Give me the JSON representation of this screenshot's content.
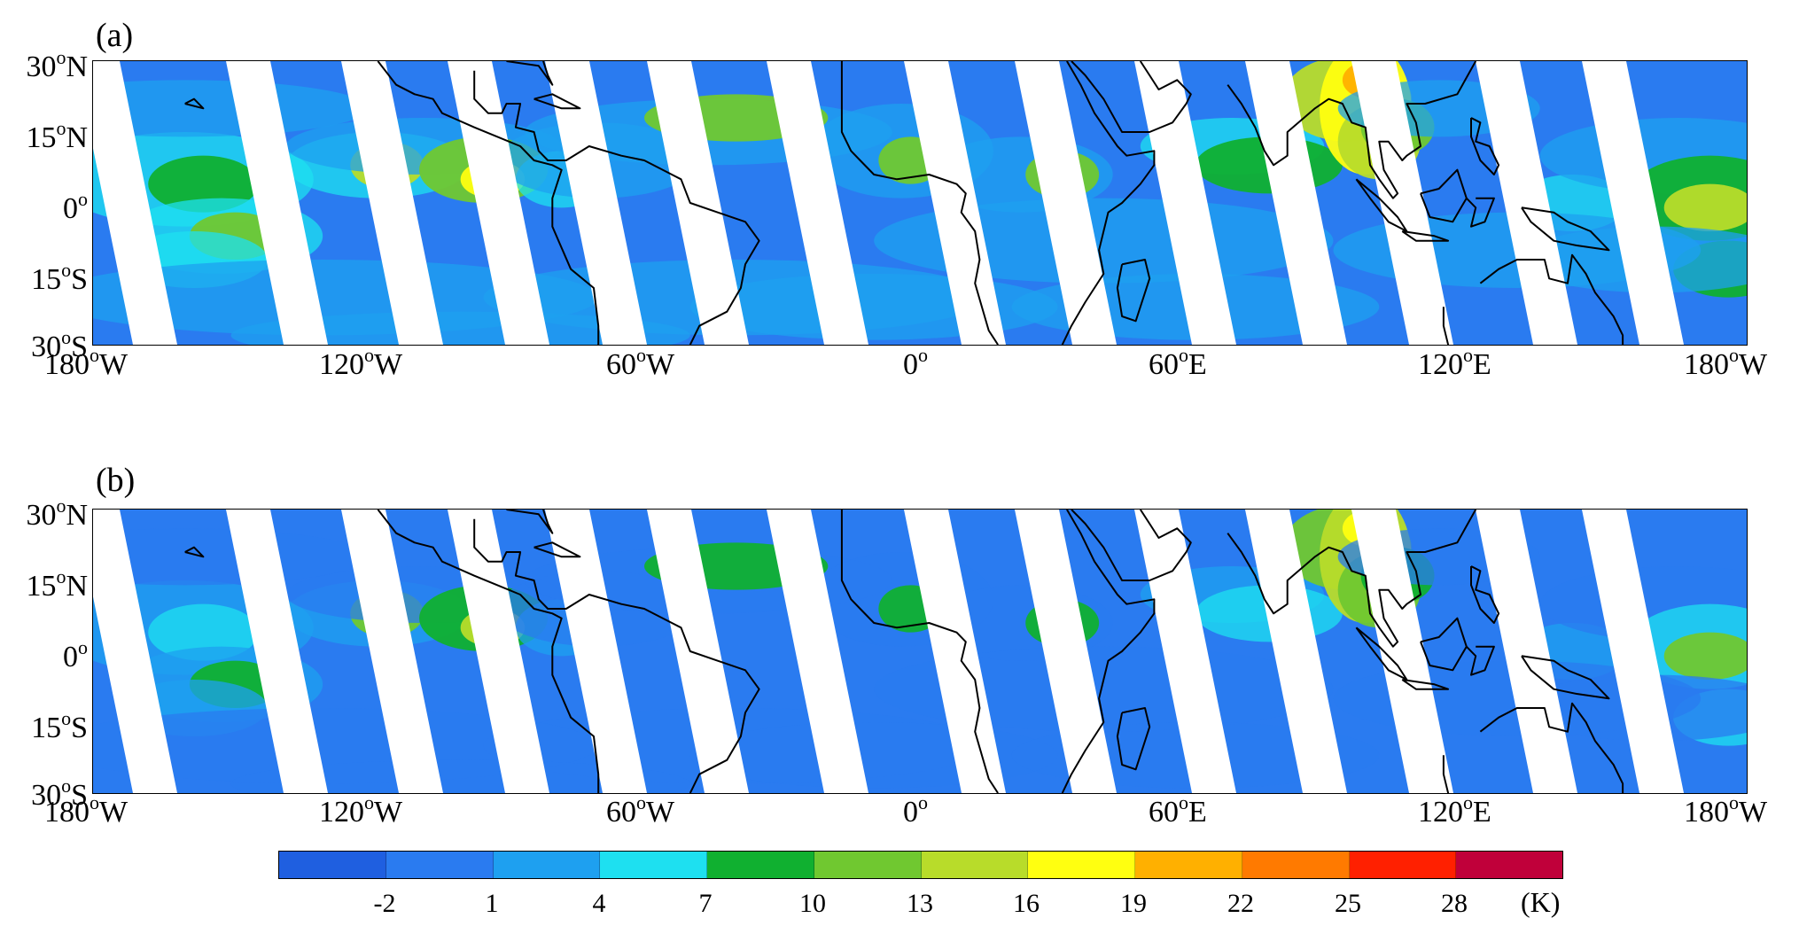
{
  "panels": [
    {
      "label": "(a)"
    },
    {
      "label": "(b)"
    }
  ],
  "axes": {
    "x_ticks": [
      {
        "num": "180",
        "dir": "W"
      },
      {
        "num": "120",
        "dir": "W"
      },
      {
        "num": "60",
        "dir": "W"
      },
      {
        "num": "0",
        "dir": ""
      },
      {
        "num": "60",
        "dir": "E"
      },
      {
        "num": "120",
        "dir": "E"
      },
      {
        "num": "180",
        "dir": "W"
      }
    ],
    "y_ticks": [
      {
        "num": "30",
        "dir": "N"
      },
      {
        "num": "15",
        "dir": "N"
      },
      {
        "num": "0",
        "dir": ""
      },
      {
        "num": "15",
        "dir": "S"
      },
      {
        "num": "30",
        "dir": "S"
      }
    ],
    "degree_symbol": "o",
    "lon_range": [
      -180,
      180
    ],
    "lat_range": [
      -30,
      30
    ]
  },
  "colorbar": {
    "colors": [
      "#1f5fe0",
      "#2a7bf0",
      "#1ea0f0",
      "#1ee0f0",
      "#10b030",
      "#70c830",
      "#b8dc2a",
      "#ffff10",
      "#ffb000",
      "#ff7a00",
      "#ff2000",
      "#c0003a"
    ],
    "tick_labels": [
      "-2",
      "1",
      "4",
      "7",
      "10",
      "13",
      "16",
      "19",
      "22",
      "25",
      "28"
    ],
    "unit": "(K)"
  },
  "map_colors": {
    "ocean_base": "#2a7bf0",
    "gap": "#ffffff",
    "coast": "#000000"
  }
}
